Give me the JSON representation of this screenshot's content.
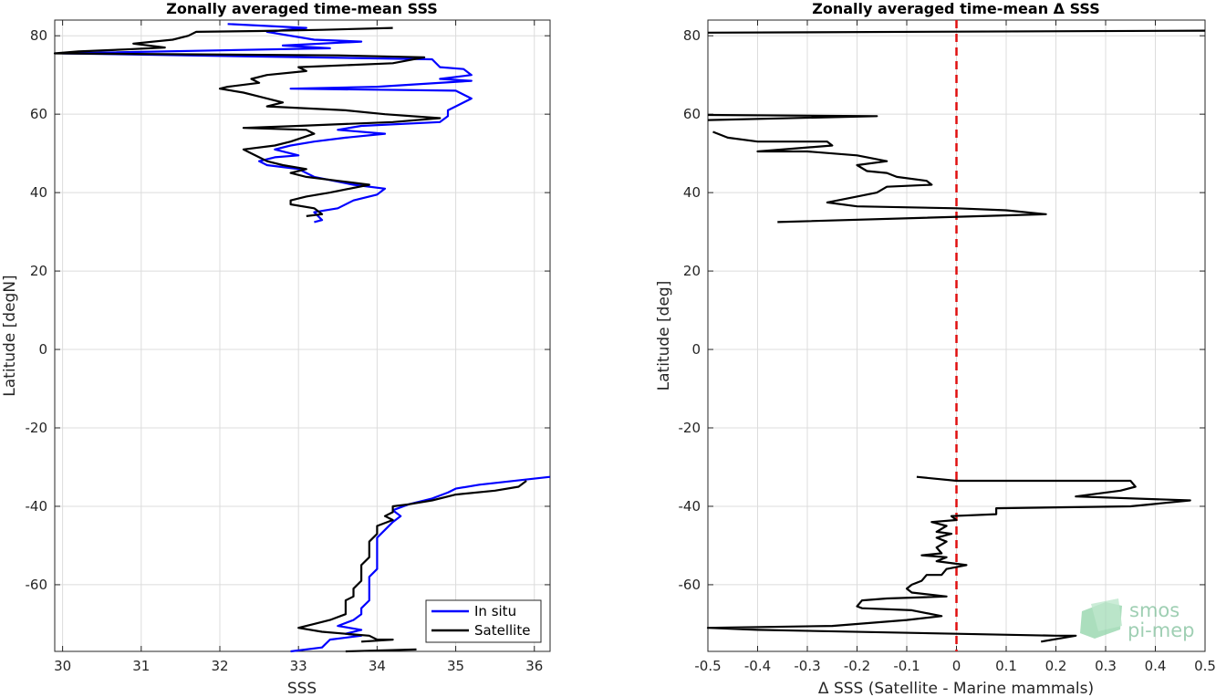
{
  "chart_data": [
    {
      "type": "line",
      "title": "Zonally averaged time-mean SSS",
      "xlabel": "SSS",
      "ylabel": "Latitude [degN]",
      "xlim": [
        29.9,
        36.2
      ],
      "ylim": [
        -77,
        84
      ],
      "xticks": [
        30,
        31,
        32,
        33,
        34,
        35,
        36
      ],
      "yticks": [
        -60,
        -40,
        -20,
        0,
        20,
        40,
        60,
        80
      ],
      "grid": true,
      "legend_position": "bottom-right",
      "series": [
        {
          "name": "In situ",
          "color": "#0000ff",
          "segments": [
            [
              [
                32.1,
                83
              ],
              [
                33.1,
                82
              ],
              [
                32.6,
                81
              ],
              [
                33.2,
                79
              ],
              [
                33.8,
                78.5
              ],
              [
                32.8,
                77.5
              ],
              [
                33.4,
                76.8
              ],
              [
                30.0,
                75.5
              ],
              [
                34.7,
                74
              ],
              [
                34.8,
                72
              ],
              [
                35.1,
                71.5
              ],
              [
                35.2,
                70
              ],
              [
                34.8,
                69
              ],
              [
                35.2,
                68.5
              ],
              [
                34.0,
                67
              ],
              [
                32.9,
                66.5
              ],
              [
                35.0,
                66
              ],
              [
                35.2,
                64
              ],
              [
                35.0,
                62
              ],
              [
                34.9,
                61
              ],
              [
                34.9,
                59.5
              ],
              [
                34.8,
                58
              ],
              [
                33.8,
                57
              ],
              [
                33.5,
                56
              ],
              [
                34.1,
                55
              ],
              [
                33.6,
                54
              ],
              [
                33.2,
                53
              ],
              [
                32.9,
                52
              ],
              [
                32.7,
                51
              ],
              [
                33.0,
                49.5
              ],
              [
                32.7,
                49
              ],
              [
                32.5,
                48
              ],
              [
                32.6,
                47
              ],
              [
                33.0,
                46
              ],
              [
                33.2,
                44
              ],
              [
                33.7,
                42
              ],
              [
                34.1,
                41
              ],
              [
                34.0,
                39.5
              ],
              [
                33.7,
                38
              ],
              [
                33.5,
                36
              ],
              [
                33.2,
                35
              ],
              [
                33.3,
                33
              ],
              [
                33.2,
                32.5
              ]
            ],
            [
              [
                36.2,
                -32.5
              ],
              [
                35.3,
                -34.5
              ],
              [
                35.0,
                -35.5
              ],
              [
                34.9,
                -36.5
              ],
              [
                34.7,
                -38
              ],
              [
                34.4,
                -39.5
              ],
              [
                34.2,
                -41
              ],
              [
                34.3,
                -42.5
              ],
              [
                34.2,
                -44
              ],
              [
                34.1,
                -46
              ],
              [
                34.0,
                -48
              ],
              [
                34.0,
                -50
              ],
              [
                34.0,
                -52
              ],
              [
                34.0,
                -54
              ],
              [
                34.0,
                -56
              ],
              [
                33.9,
                -58
              ],
              [
                33.9,
                -60
              ],
              [
                33.9,
                -62
              ],
              [
                33.9,
                -64
              ],
              [
                33.8,
                -66
              ],
              [
                33.8,
                -67.5
              ],
              [
                33.7,
                -69
              ],
              [
                33.5,
                -70.5
              ],
              [
                33.8,
                -71.5
              ],
              [
                33.6,
                -72.5
              ],
              [
                33.8,
                -73
              ],
              [
                33.4,
                -74
              ],
              [
                33.3,
                -76
              ],
              [
                32.9,
                -77
              ]
            ]
          ]
        },
        {
          "name": "Satellite",
          "color": "#000000",
          "segments": [
            [
              [
                34.2,
                82
              ],
              [
                33.3,
                81.5
              ],
              [
                32.5,
                81.2
              ],
              [
                31.7,
                81
              ],
              [
                31.6,
                80
              ],
              [
                31.4,
                79
              ],
              [
                30.9,
                78
              ],
              [
                31.3,
                77
              ],
              [
                30.8,
                76.5
              ],
              [
                30.2,
                76
              ],
              [
                29.9,
                75.5
              ],
              [
                33.5,
                75
              ],
              [
                34.6,
                74.5
              ],
              [
                34.2,
                73
              ],
              [
                33.0,
                72
              ],
              [
                33.1,
                71
              ],
              [
                32.6,
                70
              ],
              [
                32.4,
                69
              ],
              [
                32.5,
                68
              ],
              [
                32.1,
                67
              ],
              [
                32.0,
                66.5
              ],
              [
                32.3,
                65.5
              ],
              [
                32.5,
                64.5
              ],
              [
                32.8,
                63
              ],
              [
                32.6,
                62
              ],
              [
                33.6,
                61
              ],
              [
                34.1,
                60
              ],
              [
                34.8,
                59
              ],
              [
                34.2,
                58
              ],
              [
                33.0,
                57
              ],
              [
                32.3,
                56.5
              ],
              [
                33.1,
                56
              ],
              [
                33.2,
                55
              ],
              [
                32.9,
                53
              ],
              [
                32.7,
                52
              ],
              [
                32.3,
                51
              ],
              [
                32.4,
                50
              ],
              [
                32.5,
                49
              ],
              [
                32.6,
                48
              ],
              [
                32.8,
                47
              ],
              [
                33.1,
                46
              ],
              [
                32.9,
                45
              ],
              [
                33.1,
                44
              ],
              [
                33.5,
                43
              ],
              [
                33.9,
                42
              ],
              [
                33.4,
                40
              ],
              [
                33.1,
                39
              ],
              [
                32.9,
                38
              ],
              [
                32.9,
                37
              ],
              [
                33.2,
                36
              ],
              [
                33.3,
                34.5
              ],
              [
                33.1,
                34
              ]
            ],
            [
              [
                35.9,
                -33.5
              ],
              [
                35.8,
                -35
              ],
              [
                35.5,
                -36
              ],
              [
                35.0,
                -37
              ],
              [
                34.7,
                -38.5
              ],
              [
                34.4,
                -39.5
              ],
              [
                34.2,
                -40
              ],
              [
                34.2,
                -41.5
              ],
              [
                34.1,
                -42.5
              ],
              [
                34.2,
                -43.5
              ],
              [
                34.0,
                -45
              ],
              [
                34.0,
                -47
              ],
              [
                33.9,
                -49
              ],
              [
                33.9,
                -51
              ],
              [
                33.9,
                -53
              ],
              [
                33.8,
                -55
              ],
              [
                33.8,
                -57
              ],
              [
                33.8,
                -59
              ],
              [
                33.7,
                -61
              ],
              [
                33.7,
                -63
              ],
              [
                33.6,
                -64
              ],
              [
                33.6,
                -66
              ],
              [
                33.6,
                -67.5
              ],
              [
                33.4,
                -69
              ],
              [
                33.2,
                -70
              ],
              [
                33.0,
                -71
              ],
              [
                33.3,
                -72
              ],
              [
                33.6,
                -72.5
              ],
              [
                33.9,
                -73
              ],
              [
                34.0,
                -74
              ],
              [
                34.2,
                -74
              ],
              [
                33.8,
                -74.5
              ]
            ],
            [
              [
                33.6,
                -77
              ],
              [
                34.5,
                -76.5
              ]
            ]
          ]
        }
      ]
    },
    {
      "type": "line",
      "title": "Zonally averaged time-mean Δ SSS",
      "xlabel": "Δ SSS (Satellite - Marine mammals)",
      "ylabel": "Latitude [deg]",
      "xlim": [
        -0.5,
        0.5
      ],
      "ylim": [
        -77,
        84
      ],
      "xticks": [
        -0.5,
        -0.4,
        -0.3,
        -0.2,
        -0.1,
        0,
        0.1,
        0.2,
        0.3,
        0.4,
        0.5
      ],
      "yticks": [
        -60,
        -40,
        -20,
        0,
        20,
        40,
        60,
        80
      ],
      "grid": true,
      "reference_line": {
        "x": 0,
        "color": "#e01010",
        "style": "dashed"
      },
      "series": [
        {
          "color": "#000000",
          "segments": [
            [
              [
                -0.5,
                80.8
              ],
              [
                0.5,
                81.3
              ]
            ],
            [
              [
                -0.5,
                59.8
              ],
              [
                -0.16,
                59.5
              ],
              [
                -0.5,
                58.5
              ]
            ],
            [
              [
                -0.49,
                55.5
              ],
              [
                -0.46,
                54
              ],
              [
                -0.4,
                53
              ],
              [
                -0.26,
                53
              ],
              [
                -0.25,
                52
              ],
              [
                -0.4,
                50.5
              ],
              [
                -0.3,
                50.5
              ],
              [
                -0.2,
                49.5
              ],
              [
                -0.14,
                48
              ],
              [
                -0.2,
                47
              ],
              [
                -0.18,
                45.5
              ],
              [
                -0.14,
                45
              ],
              [
                -0.12,
                44
              ],
              [
                -0.06,
                43
              ],
              [
                -0.05,
                42
              ],
              [
                -0.14,
                41.5
              ],
              [
                -0.16,
                40
              ],
              [
                -0.2,
                39
              ],
              [
                -0.26,
                37.5
              ],
              [
                -0.2,
                36.5
              ],
              [
                0.0,
                36
              ],
              [
                0.1,
                35.5
              ],
              [
                0.18,
                34.5
              ],
              [
                -0.36,
                32.5
              ]
            ]
          ]
        },
        {
          "color": "#000000",
          "segments": [
            [
              [
                -0.08,
                -32.5
              ],
              [
                0.0,
                -33.5
              ],
              [
                0.35,
                -33.5
              ],
              [
                0.36,
                -35
              ],
              [
                0.33,
                -36
              ],
              [
                0.24,
                -37.5
              ],
              [
                0.47,
                -38.5
              ],
              [
                0.35,
                -40
              ],
              [
                0.08,
                -40.5
              ],
              [
                0.08,
                -42
              ],
              [
                -0.01,
                -42.5
              ],
              [
                0.0,
                -43.5
              ],
              [
                -0.05,
                -44
              ],
              [
                -0.02,
                -45
              ],
              [
                -0.04,
                -46.5
              ],
              [
                -0.01,
                -47
              ],
              [
                -0.04,
                -48
              ],
              [
                -0.02,
                -49
              ],
              [
                -0.04,
                -50.5
              ],
              [
                -0.03,
                -52
              ],
              [
                -0.07,
                -52.5
              ],
              [
                -0.02,
                -53
              ],
              [
                -0.04,
                -54
              ],
              [
                0.02,
                -55
              ],
              [
                -0.02,
                -56
              ],
              [
                -0.03,
                -57.5
              ],
              [
                -0.06,
                -57.5
              ],
              [
                -0.07,
                -59
              ],
              [
                -0.09,
                -60
              ],
              [
                -0.1,
                -61
              ],
              [
                -0.09,
                -62
              ],
              [
                -0.02,
                -63
              ],
              [
                -0.14,
                -63.5
              ],
              [
                -0.19,
                -64
              ],
              [
                -0.2,
                -65.5
              ],
              [
                -0.19,
                -66
              ],
              [
                -0.09,
                -66.5
              ],
              [
                -0.03,
                -68
              ],
              [
                -0.1,
                -69
              ],
              [
                -0.25,
                -70.5
              ],
              [
                -0.5,
                -71
              ],
              [
                -0.4,
                -71.5
              ],
              [
                0.0,
                -72.5
              ],
              [
                0.2,
                -73
              ],
              [
                0.24,
                -73
              ],
              [
                0.17,
                -74.5
              ]
            ]
          ]
        }
      ]
    }
  ],
  "legend": {
    "items": [
      {
        "label": "In situ",
        "color": "#0000ff"
      },
      {
        "label": "Satellite",
        "color": "#000000"
      }
    ]
  },
  "watermark": {
    "line1": "smos",
    "line2": "pi-mep"
  }
}
